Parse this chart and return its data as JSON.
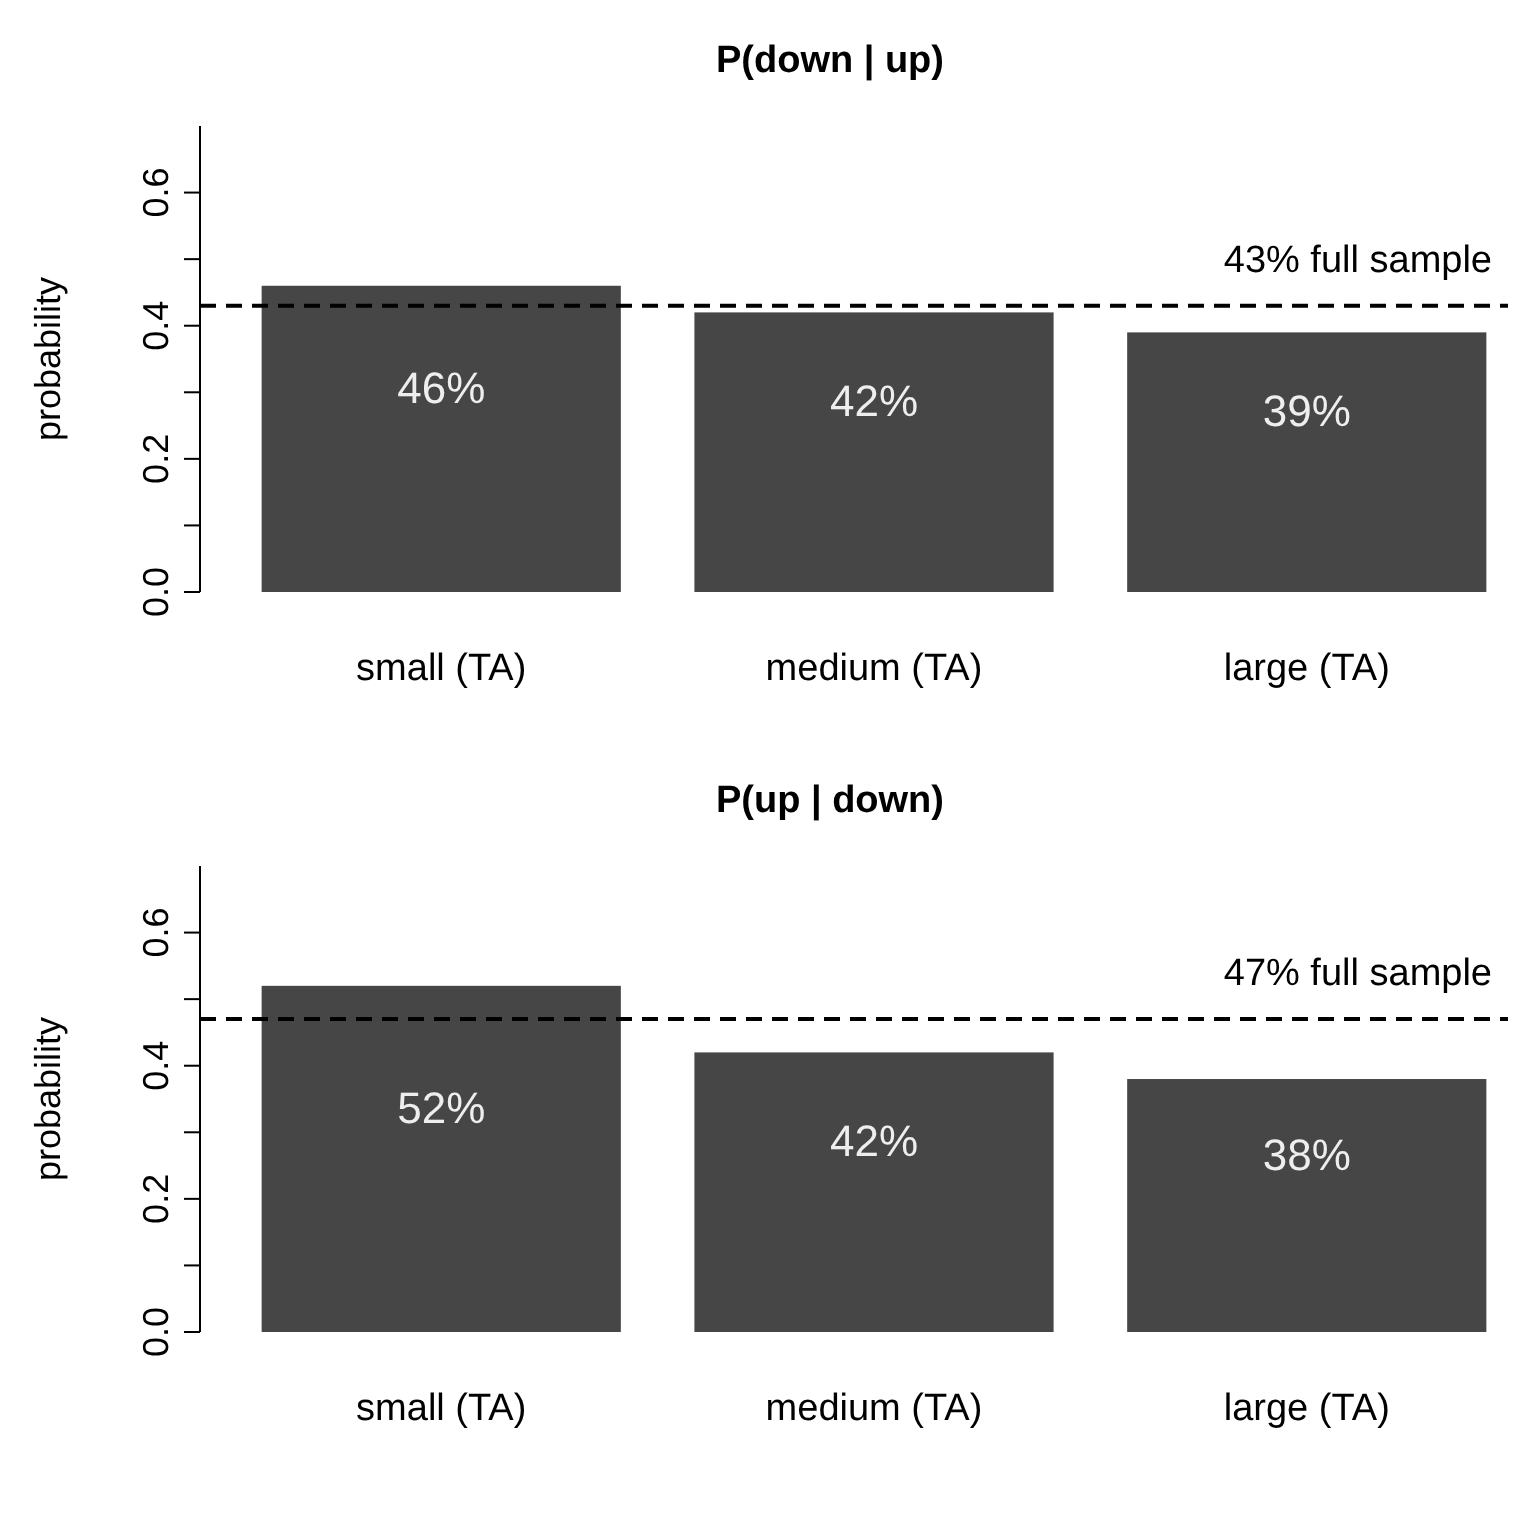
{
  "chart_data": [
    {
      "type": "bar",
      "title": "P(down | up)",
      "ylabel": "probability",
      "categories": [
        "small (TA)",
        "medium (TA)",
        "large (TA)"
      ],
      "values": [
        0.46,
        0.42,
        0.39
      ],
      "value_labels": [
        "46%",
        "42%",
        "39%"
      ],
      "color": "#464646",
      "ylim": [
        0,
        0.7
      ],
      "yticks": [
        {
          "value": 0,
          "label": "0.0"
        },
        {
          "value": 0.1,
          "label": null
        },
        {
          "value": 0.2,
          "label": "0.2"
        },
        {
          "value": 0.3,
          "label": null
        },
        {
          "value": 0.4,
          "label": "0.4"
        },
        {
          "value": 0.5,
          "label": null
        },
        {
          "value": 0.6,
          "label": "0.6"
        }
      ],
      "grid": false,
      "ref_lines": [
        {
          "axis": "y",
          "value": 0.43,
          "label": "43% full sample",
          "color": "#000000",
          "line_style": "dashed"
        }
      ]
    },
    {
      "type": "bar",
      "title": "P(up | down)",
      "ylabel": "probability",
      "categories": [
        "small (TA)",
        "medium (TA)",
        "large (TA)"
      ],
      "values": [
        0.52,
        0.42,
        0.38
      ],
      "value_labels": [
        "52%",
        "42%",
        "38%"
      ],
      "color": "#464646",
      "ylim": [
        0,
        0.7
      ],
      "yticks": [
        {
          "value": 0,
          "label": "0.0"
        },
        {
          "value": 0.1,
          "label": null
        },
        {
          "value": 0.2,
          "label": "0.2"
        },
        {
          "value": 0.3,
          "label": null
        },
        {
          "value": 0.4,
          "label": "0.4"
        },
        {
          "value": 0.5,
          "label": null
        },
        {
          "value": 0.6,
          "label": "0.6"
        }
      ],
      "grid": false,
      "ref_lines": [
        {
          "axis": "y",
          "value": 0.47,
          "label": "47% full sample",
          "color": "#000000",
          "line_style": "dashed"
        }
      ]
    }
  ]
}
